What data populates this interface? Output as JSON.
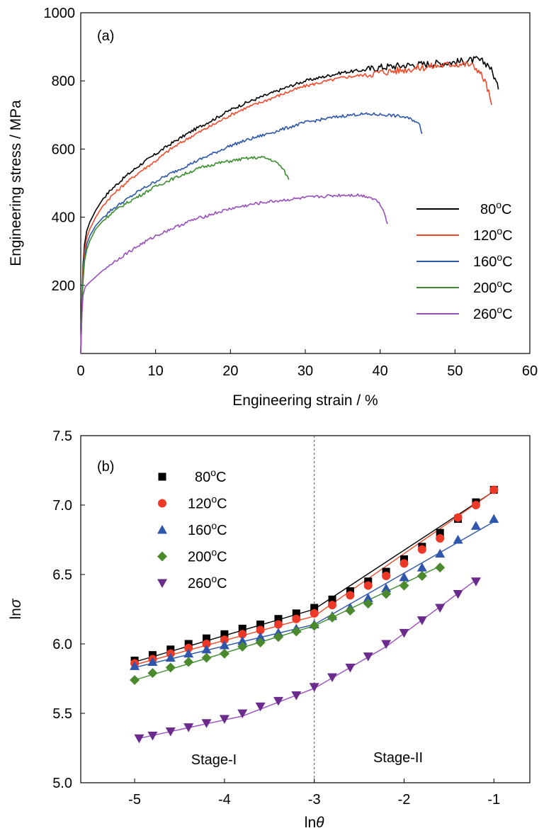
{
  "colors": {
    "80C": "#000000",
    "120C": "#f04a2b",
    "160C": "#2e56a8",
    "200C": "#3b8d2d",
    "260C": "#9a4fbf",
    "markers_80C": "#000000",
    "markers_120C": "#ec3826",
    "markers_160C": "#2f55ad",
    "markers_200C": "#4b8a2c",
    "markers_260C": "#6b2b8d",
    "divider": "#555555"
  },
  "chart_data": [
    {
      "type": "line",
      "panel_label": "(a)",
      "xlabel": "Engineering strain / %",
      "ylabel": "Engineering stress / MPa",
      "xlim": [
        0,
        60
      ],
      "ylim": [
        0,
        1000
      ],
      "xticks": [
        "0",
        "10",
        "20",
        "30",
        "40",
        "50",
        "60"
      ],
      "yticks": [
        "200",
        "400",
        "600",
        "800",
        "1000"
      ],
      "grid": false,
      "legend_position": "right",
      "series": [
        {
          "name": "80",
          "unit": "oC",
          "color_key": "80C",
          "x": [
            0,
            0.15,
            0.3,
            0.5,
            0.8,
            1.2,
            2,
            3,
            4,
            6,
            8,
            10,
            12,
            15,
            18,
            20,
            22,
            25,
            28,
            30,
            33,
            35,
            38,
            40,
            43,
            45,
            48,
            50,
            52,
            53,
            53.8,
            54.5,
            55.2,
            55.8
          ],
          "y": [
            0,
            150,
            260,
            320,
            360,
            385,
            420,
            455,
            480,
            520,
            555,
            585,
            615,
            655,
            690,
            715,
            735,
            760,
            785,
            800,
            815,
            825,
            832,
            840,
            845,
            848,
            852,
            855,
            860,
            862,
            855,
            848,
            815,
            775
          ]
        },
        {
          "name": "120",
          "unit": "oC",
          "color_key": "120C",
          "x": [
            0,
            0.15,
            0.3,
            0.5,
            0.8,
            1.2,
            2,
            3,
            4,
            6,
            8,
            10,
            12,
            15,
            18,
            20,
            22,
            25,
            28,
            30,
            33,
            35,
            38,
            40,
            43,
            45,
            48,
            50,
            52,
            53,
            54,
            54.5,
            54.9
          ],
          "y": [
            0,
            140,
            240,
            300,
            340,
            365,
            400,
            435,
            460,
            500,
            535,
            565,
            600,
            640,
            675,
            700,
            720,
            745,
            770,
            785,
            800,
            810,
            818,
            825,
            832,
            838,
            845,
            850,
            848,
            835,
            800,
            765,
            730
          ]
        },
        {
          "name": "160",
          "unit": "oC",
          "color_key": "160C",
          "x": [
            0,
            0.15,
            0.3,
            0.5,
            0.8,
            1.2,
            2,
            3,
            4,
            6,
            8,
            10,
            12,
            15,
            18,
            20,
            22,
            25,
            28,
            30,
            33,
            35,
            37,
            39,
            41,
            43,
            44.5,
            45.3,
            45.6
          ],
          "y": [
            0,
            130,
            220,
            280,
            320,
            345,
            375,
            400,
            420,
            450,
            480,
            505,
            528,
            560,
            590,
            610,
            625,
            645,
            665,
            678,
            690,
            697,
            702,
            702,
            700,
            695,
            685,
            670,
            645
          ]
        },
        {
          "name": "200",
          "unit": "oC",
          "color_key": "200C",
          "x": [
            0,
            0.15,
            0.3,
            0.5,
            0.8,
            1.2,
            2,
            3,
            4,
            6,
            8,
            10,
            12,
            14,
            16,
            18,
            20,
            22,
            23.5,
            24.5,
            25.5,
            26.5,
            27.2,
            27.8
          ],
          "y": [
            0,
            125,
            210,
            270,
            305,
            330,
            365,
            390,
            410,
            440,
            465,
            490,
            510,
            528,
            545,
            557,
            565,
            572,
            575,
            575,
            568,
            555,
            535,
            510
          ]
        },
        {
          "name": "260",
          "unit": "oC",
          "color_key": "260C",
          "x": [
            0,
            0.15,
            0.3,
            0.6,
            1,
            2,
            3,
            4,
            6,
            8,
            10,
            12,
            15,
            18,
            20,
            23,
            25,
            28,
            30,
            33,
            35,
            37,
            38.5,
            39.5,
            40.2,
            40.7,
            41
          ],
          "y": [
            0,
            110,
            170,
            195,
            205,
            225,
            245,
            262,
            292,
            320,
            345,
            365,
            392,
            412,
            425,
            438,
            445,
            452,
            457,
            462,
            465,
            465,
            460,
            450,
            432,
            405,
            380
          ]
        }
      ]
    },
    {
      "type": "scatter",
      "panel_label": "(b)",
      "xlabel": "ln",
      "xlabel_symbol": "θ",
      "ylabel": "ln",
      "ylabel_symbol": "σ",
      "xlim": [
        -5.6,
        -0.6
      ],
      "ylim": [
        5.0,
        7.5
      ],
      "xticks": [
        "-5",
        "-4",
        "-3",
        "-2",
        "-1"
      ],
      "yticks": [
        "5.0",
        "5.5",
        "6.0",
        "6.5",
        "7.0",
        "7.5"
      ],
      "grid": false,
      "legend_position": "top-left",
      "divider_x": -3,
      "annotations": [
        "Stage-I",
        "Stage-II"
      ],
      "series": [
        {
          "name": "80",
          "unit": "oC",
          "marker": "square",
          "color_key": "markers_80C",
          "line_color_key": "80C",
          "x": [
            -5,
            -4.8,
            -4.6,
            -4.4,
            -4.2,
            -4,
            -3.8,
            -3.6,
            -3.4,
            -3.2,
            -3,
            -2.8,
            -2.6,
            -2.4,
            -2.2,
            -2,
            -1.8,
            -1.6,
            -1.4,
            -1.2,
            -1
          ],
          "y": [
            5.88,
            5.92,
            5.96,
            6.0,
            6.04,
            6.07,
            6.11,
            6.14,
            6.18,
            6.22,
            6.26,
            6.32,
            6.38,
            6.45,
            6.52,
            6.61,
            6.7,
            6.8,
            6.9,
            7.02,
            7.11
          ],
          "fit_x": [
            -5,
            -3,
            -1
          ],
          "fit_y": [
            5.87,
            6.25,
            7.1
          ]
        },
        {
          "name": "120",
          "unit": "oC",
          "marker": "circle",
          "color_key": "markers_120C",
          "line_color_key": "120C",
          "x": [
            -5,
            -4.8,
            -4.6,
            -4.4,
            -4.2,
            -4,
            -3.8,
            -3.6,
            -3.4,
            -3.2,
            -3,
            -2.8,
            -2.6,
            -2.4,
            -2.2,
            -2,
            -1.8,
            -1.6,
            -1.4,
            -1.2,
            -1
          ],
          "y": [
            5.86,
            5.89,
            5.93,
            5.97,
            6.0,
            6.03,
            6.07,
            6.1,
            6.14,
            6.18,
            6.22,
            6.28,
            6.35,
            6.42,
            6.49,
            6.58,
            6.68,
            6.76,
            6.91,
            7.0,
            7.11
          ],
          "fit_x": [
            -5,
            -3,
            -1
          ],
          "fit_y": [
            5.85,
            6.2,
            7.1
          ]
        },
        {
          "name": "160",
          "unit": "oC",
          "marker": "triangle-up",
          "color_key": "markers_160C",
          "line_color_key": "160C",
          "x": [
            -5,
            -4.8,
            -4.6,
            -4.4,
            -4.2,
            -4,
            -3.8,
            -3.6,
            -3.4,
            -3.2,
            -3,
            -2.8,
            -2.6,
            -2.4,
            -2.2,
            -2,
            -1.8,
            -1.6,
            -1.4,
            -1.2,
            -1
          ],
          "y": [
            5.84,
            5.87,
            5.9,
            5.93,
            5.96,
            5.99,
            6.02,
            6.05,
            6.08,
            6.11,
            6.14,
            6.2,
            6.26,
            6.33,
            6.4,
            6.48,
            6.55,
            6.65,
            6.75,
            6.85,
            6.9
          ],
          "fit_x": [
            -5,
            -3,
            -1
          ],
          "fit_y": [
            5.83,
            6.14,
            6.88
          ]
        },
        {
          "name": "200",
          "unit": "oC",
          "marker": "diamond",
          "color_key": "markers_200C",
          "line_color_key": "200C",
          "x": [
            -5,
            -4.8,
            -4.6,
            -4.4,
            -4.2,
            -4,
            -3.8,
            -3.6,
            -3.4,
            -3.2,
            -3,
            -2.8,
            -2.6,
            -2.4,
            -2.2,
            -2,
            -1.8,
            -1.6
          ],
          "y": [
            5.74,
            5.79,
            5.83,
            5.87,
            5.9,
            5.93,
            5.98,
            6.01,
            6.05,
            6.09,
            6.13,
            6.19,
            6.24,
            6.29,
            6.36,
            6.42,
            6.49,
            6.55
          ],
          "fit_x": [
            -5,
            -3,
            -1.6
          ],
          "fit_y": [
            5.74,
            6.13,
            6.56
          ]
        },
        {
          "name": "260",
          "unit": "oC",
          "marker": "triangle-down",
          "color_key": "markers_260C",
          "line_color_key": "260C",
          "x": [
            -4.95,
            -4.8,
            -4.6,
            -4.4,
            -4.2,
            -4,
            -3.8,
            -3.6,
            -3.4,
            -3.2,
            -3,
            -2.8,
            -2.6,
            -2.4,
            -2.2,
            -2,
            -1.8,
            -1.6,
            -1.4,
            -1.2
          ],
          "y": [
            5.32,
            5.34,
            5.37,
            5.4,
            5.43,
            5.46,
            5.5,
            5.55,
            5.59,
            5.63,
            5.69,
            5.76,
            5.83,
            5.91,
            6.0,
            6.08,
            6.17,
            6.26,
            6.36,
            6.45
          ],
          "fit_x": [
            -4.95,
            -3.8,
            -3,
            -2.2,
            -1.2
          ],
          "fit_y": [
            5.32,
            5.48,
            5.68,
            5.98,
            6.46
          ]
        }
      ]
    }
  ]
}
